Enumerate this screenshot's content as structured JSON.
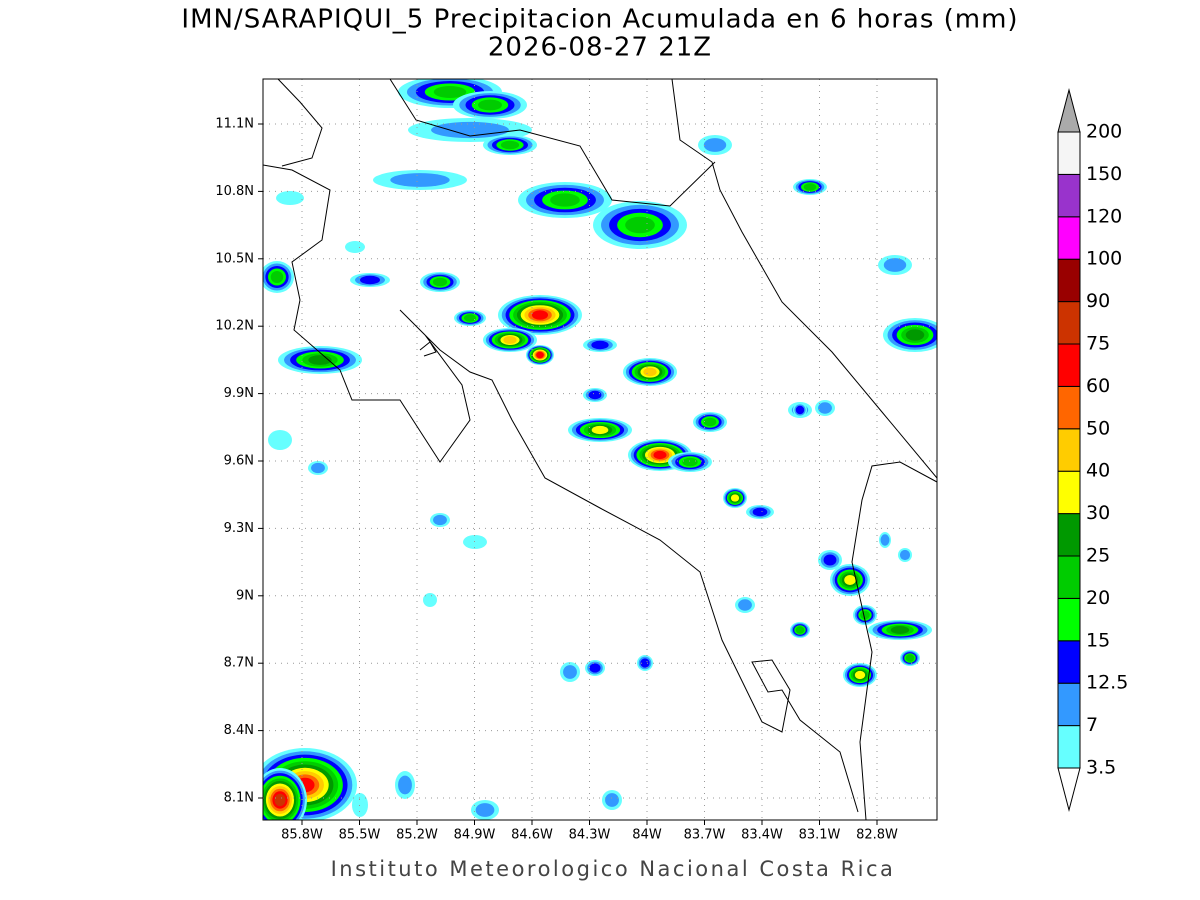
{
  "header": {
    "title": "IMN/SARAPIQUI_5 Precipitacion Acumulada en 6 horas (mm)",
    "subtitle": "2026-08-27 21Z"
  },
  "map": {
    "lat_ticks": [
      {
        "value": 11.1,
        "label": "11.1N"
      },
      {
        "value": 10.8,
        "label": "10.8N"
      },
      {
        "value": 10.5,
        "label": "10.5N"
      },
      {
        "value": 10.2,
        "label": "10.2N"
      },
      {
        "value": 9.9,
        "label": "9.9N"
      },
      {
        "value": 9.6,
        "label": "9.6N"
      },
      {
        "value": 9.3,
        "label": "9.3N"
      },
      {
        "value": 9,
        "label": "9N"
      },
      {
        "value": 8.7,
        "label": "8.7N"
      },
      {
        "value": 8.4,
        "label": "8.4N"
      },
      {
        "value": 8.1,
        "label": "8.1N"
      }
    ],
    "lon_ticks": [
      {
        "value": 85.8,
        "label": "85.8W"
      },
      {
        "value": 85.5,
        "label": "85.5W"
      },
      {
        "value": 85.2,
        "label": "85.2W"
      },
      {
        "value": 84.9,
        "label": "84.9W"
      },
      {
        "value": 84.6,
        "label": "84.6W"
      },
      {
        "value": 84.3,
        "label": "84.3W"
      },
      {
        "value": 84,
        "label": "84W"
      },
      {
        "value": 83.7,
        "label": "83.7W"
      },
      {
        "value": 83.4,
        "label": "83.4W"
      },
      {
        "value": 83.1,
        "label": "83.1W"
      },
      {
        "value": 82.8,
        "label": "82.8W"
      }
    ]
  },
  "colorbar": {
    "levels": [
      3.5,
      7,
      12.5,
      15,
      20,
      25,
      30,
      40,
      50,
      60,
      75,
      90,
      100,
      120,
      150,
      200
    ],
    "colors": [
      "#66ffff",
      "#3399ff",
      "#0000ff",
      "#00ff00",
      "#00cc00",
      "#009900",
      "#ffff00",
      "#ffcc00",
      "#ff6600",
      "#ff0000",
      "#cc3300",
      "#990000",
      "#ff00ff",
      "#9933cc",
      "#f5f5f5"
    ]
  },
  "footer": "Instituto Meteorologico Nacional Costa Rica"
}
